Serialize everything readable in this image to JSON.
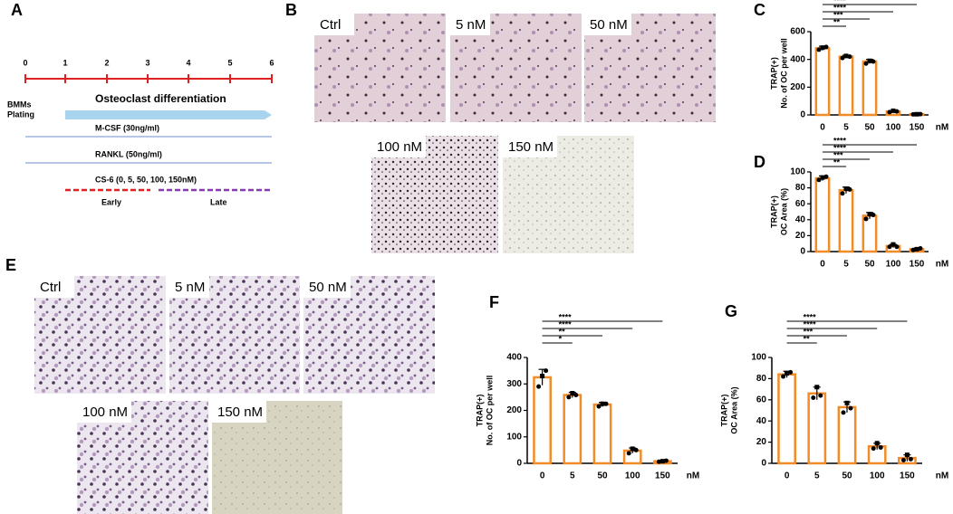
{
  "panel_labels": [
    "A",
    "B",
    "C",
    "D",
    "E",
    "F",
    "G"
  ],
  "timeline": {
    "days": [
      "0",
      "1",
      "2",
      "3",
      "4",
      "5",
      "6"
    ],
    "start": [
      "BMMs",
      "Plating"
    ],
    "phase": "Osteoclast differentiation",
    "treatments": [
      "M-CSF (30ng/ml)",
      "RANKL (50ng/ml)",
      "CS-6 (0, 5, 50, 100, 150nM)"
    ],
    "early": "Early",
    "late": "Late"
  },
  "images_b": [
    "Ctrl",
    "5 nM",
    "50 nM",
    "100 nM",
    "150 nM"
  ],
  "images_e": [
    "Ctrl",
    "5 nM",
    "50 nM",
    "100 nM",
    "150 nM"
  ],
  "chart_data": [
    {
      "type": "bar",
      "ylabel": [
        "TRAP(+)",
        "No. of OC per well"
      ],
      "categories": [
        "0",
        "5",
        "50",
        "100",
        "150"
      ],
      "x_unit": "nM",
      "values": [
        480,
        420,
        385,
        25,
        5
      ],
      "errors": [
        15,
        10,
        15,
        5,
        2
      ],
      "points": [
        [
          470,
          485,
          490
        ],
        [
          410,
          425,
          420
        ],
        [
          370,
          390,
          385
        ],
        [
          20,
          30,
          25
        ],
        [
          4,
          5,
          6
        ]
      ],
      "ylim": [
        0,
        600
      ],
      "yticks": [
        0,
        200,
        400,
        600
      ],
      "significance": [
        "**",
        "***",
        "****",
        "****"
      ],
      "color": "#f28c28"
    },
    {
      "type": "bar",
      "ylabel": [
        "TRAP(+)",
        "OC Area (%)"
      ],
      "categories": [
        "0",
        "5",
        "50",
        "100",
        "150"
      ],
      "x_unit": "nM",
      "values": [
        92,
        77,
        45,
        7,
        3
      ],
      "errors": [
        3,
        4,
        4,
        2,
        1
      ],
      "points": [
        [
          90,
          93,
          94
        ],
        [
          73,
          79,
          78
        ],
        [
          41,
          47,
          46
        ],
        [
          6,
          9,
          6
        ],
        [
          2,
          3,
          4
        ]
      ],
      "ylim": [
        0,
        100
      ],
      "yticks": [
        0,
        20,
        40,
        60,
        80,
        100
      ],
      "significance": [
        "**",
        "***",
        "****",
        "****"
      ],
      "color": "#f28c28"
    },
    {
      "type": "bar",
      "ylabel": [
        "TRAP(+)",
        "No. of OC per well"
      ],
      "categories": [
        "0",
        "5",
        "50",
        "100",
        "150"
      ],
      "x_unit": "nM",
      "values": [
        325,
        258,
        222,
        48,
        8
      ],
      "errors": [
        30,
        10,
        8,
        10,
        2
      ],
      "points": [
        [
          290,
          330,
          350
        ],
        [
          250,
          265,
          258
        ],
        [
          215,
          225,
          225
        ],
        [
          38,
          55,
          50
        ],
        [
          6,
          8,
          10
        ]
      ],
      "ylim": [
        0,
        400
      ],
      "yticks": [
        0,
        100,
        200,
        300,
        400
      ],
      "significance": [
        "*",
        "**",
        "****",
        "****"
      ],
      "color": "#f28c28"
    },
    {
      "type": "bar",
      "ylabel": [
        "TRAP(+)",
        "OC Area (%)"
      ],
      "categories": [
        "0",
        "5",
        "50",
        "100",
        "150"
      ],
      "x_unit": "nM",
      "values": [
        84,
        66,
        53,
        16,
        5
      ],
      "errors": [
        3,
        6,
        5,
        3,
        3
      ],
      "points": [
        [
          82,
          85,
          86
        ],
        [
          62,
          72,
          64
        ],
        [
          48,
          57,
          52
        ],
        [
          14,
          19,
          15
        ],
        [
          3,
          8,
          4
        ]
      ],
      "ylim": [
        0,
        100
      ],
      "yticks": [
        0,
        20,
        40,
        60,
        80,
        100
      ],
      "significance": [
        "**",
        "***",
        "****",
        "****"
      ],
      "color": "#f28c28"
    }
  ]
}
